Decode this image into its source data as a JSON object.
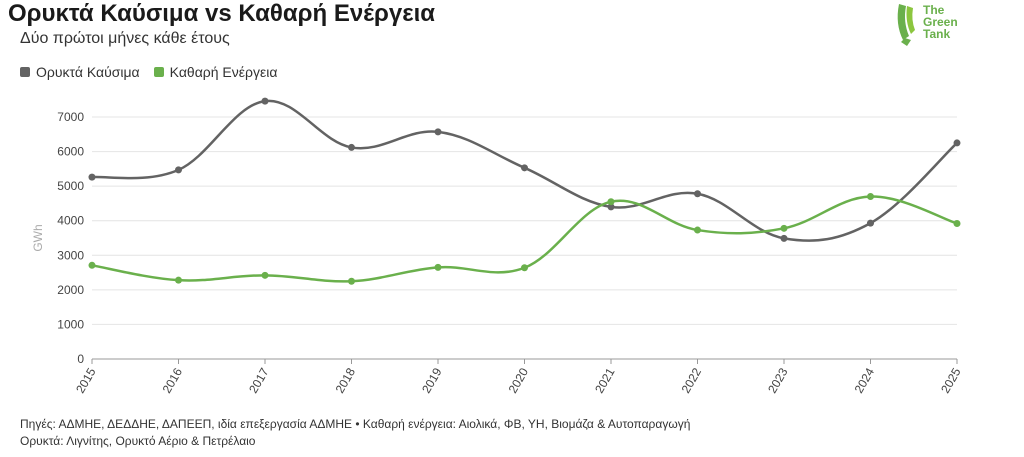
{
  "title": "Ορυκτά Καύσιμα vs Καθαρή Ενέργεια",
  "subtitle": "Δύο πρώτοι μήνες κάθε έτους",
  "logo": {
    "line1": "The",
    "line2": "Green",
    "line3": "Tank"
  },
  "colors": {
    "fossil": "#636363",
    "clean": "#6ab04c",
    "grid": "#e4e4e4",
    "axis": "#999999"
  },
  "chart_data": {
    "type": "line",
    "x": [
      "2015",
      "2016",
      "2017",
      "2018",
      "2019",
      "2020",
      "2021",
      "2022",
      "2023",
      "2024",
      "2025"
    ],
    "series": [
      {
        "name": "Ορυκτά Καύσιμα",
        "values": [
          5260,
          5470,
          7460,
          6120,
          6570,
          5530,
          4400,
          4780,
          3490,
          3930,
          6250
        ]
      },
      {
        "name": "Καθαρή Ενέργεια",
        "values": [
          2710,
          2280,
          2420,
          2250,
          2650,
          2640,
          4550,
          3730,
          3780,
          4700,
          3920
        ]
      }
    ],
    "ylabel": "GWh",
    "ylim": [
      0,
      7000
    ],
    "yticks": [
      "0",
      "1000",
      "2000",
      "3000",
      "4000",
      "5000",
      "6000",
      "7000"
    ],
    "grid": true,
    "legend": "top-left"
  },
  "footer": {
    "line1": "Πηγές: ΑΔΜΗΕ, ΔΕΔΔΗΕ, ΔΑΠΕΕΠ, ιδία επεξεργασία ΑΔΜΗΕ • Καθαρή ενέργεια: Αιολικά, ΦΒ, ΥΗ, Βιομάζα & Αυτοπαραγωγή",
    "line2": "Ορυκτά: Λιγνίτης, Ορυκτό Αέριο & Πετρέλαιο"
  }
}
